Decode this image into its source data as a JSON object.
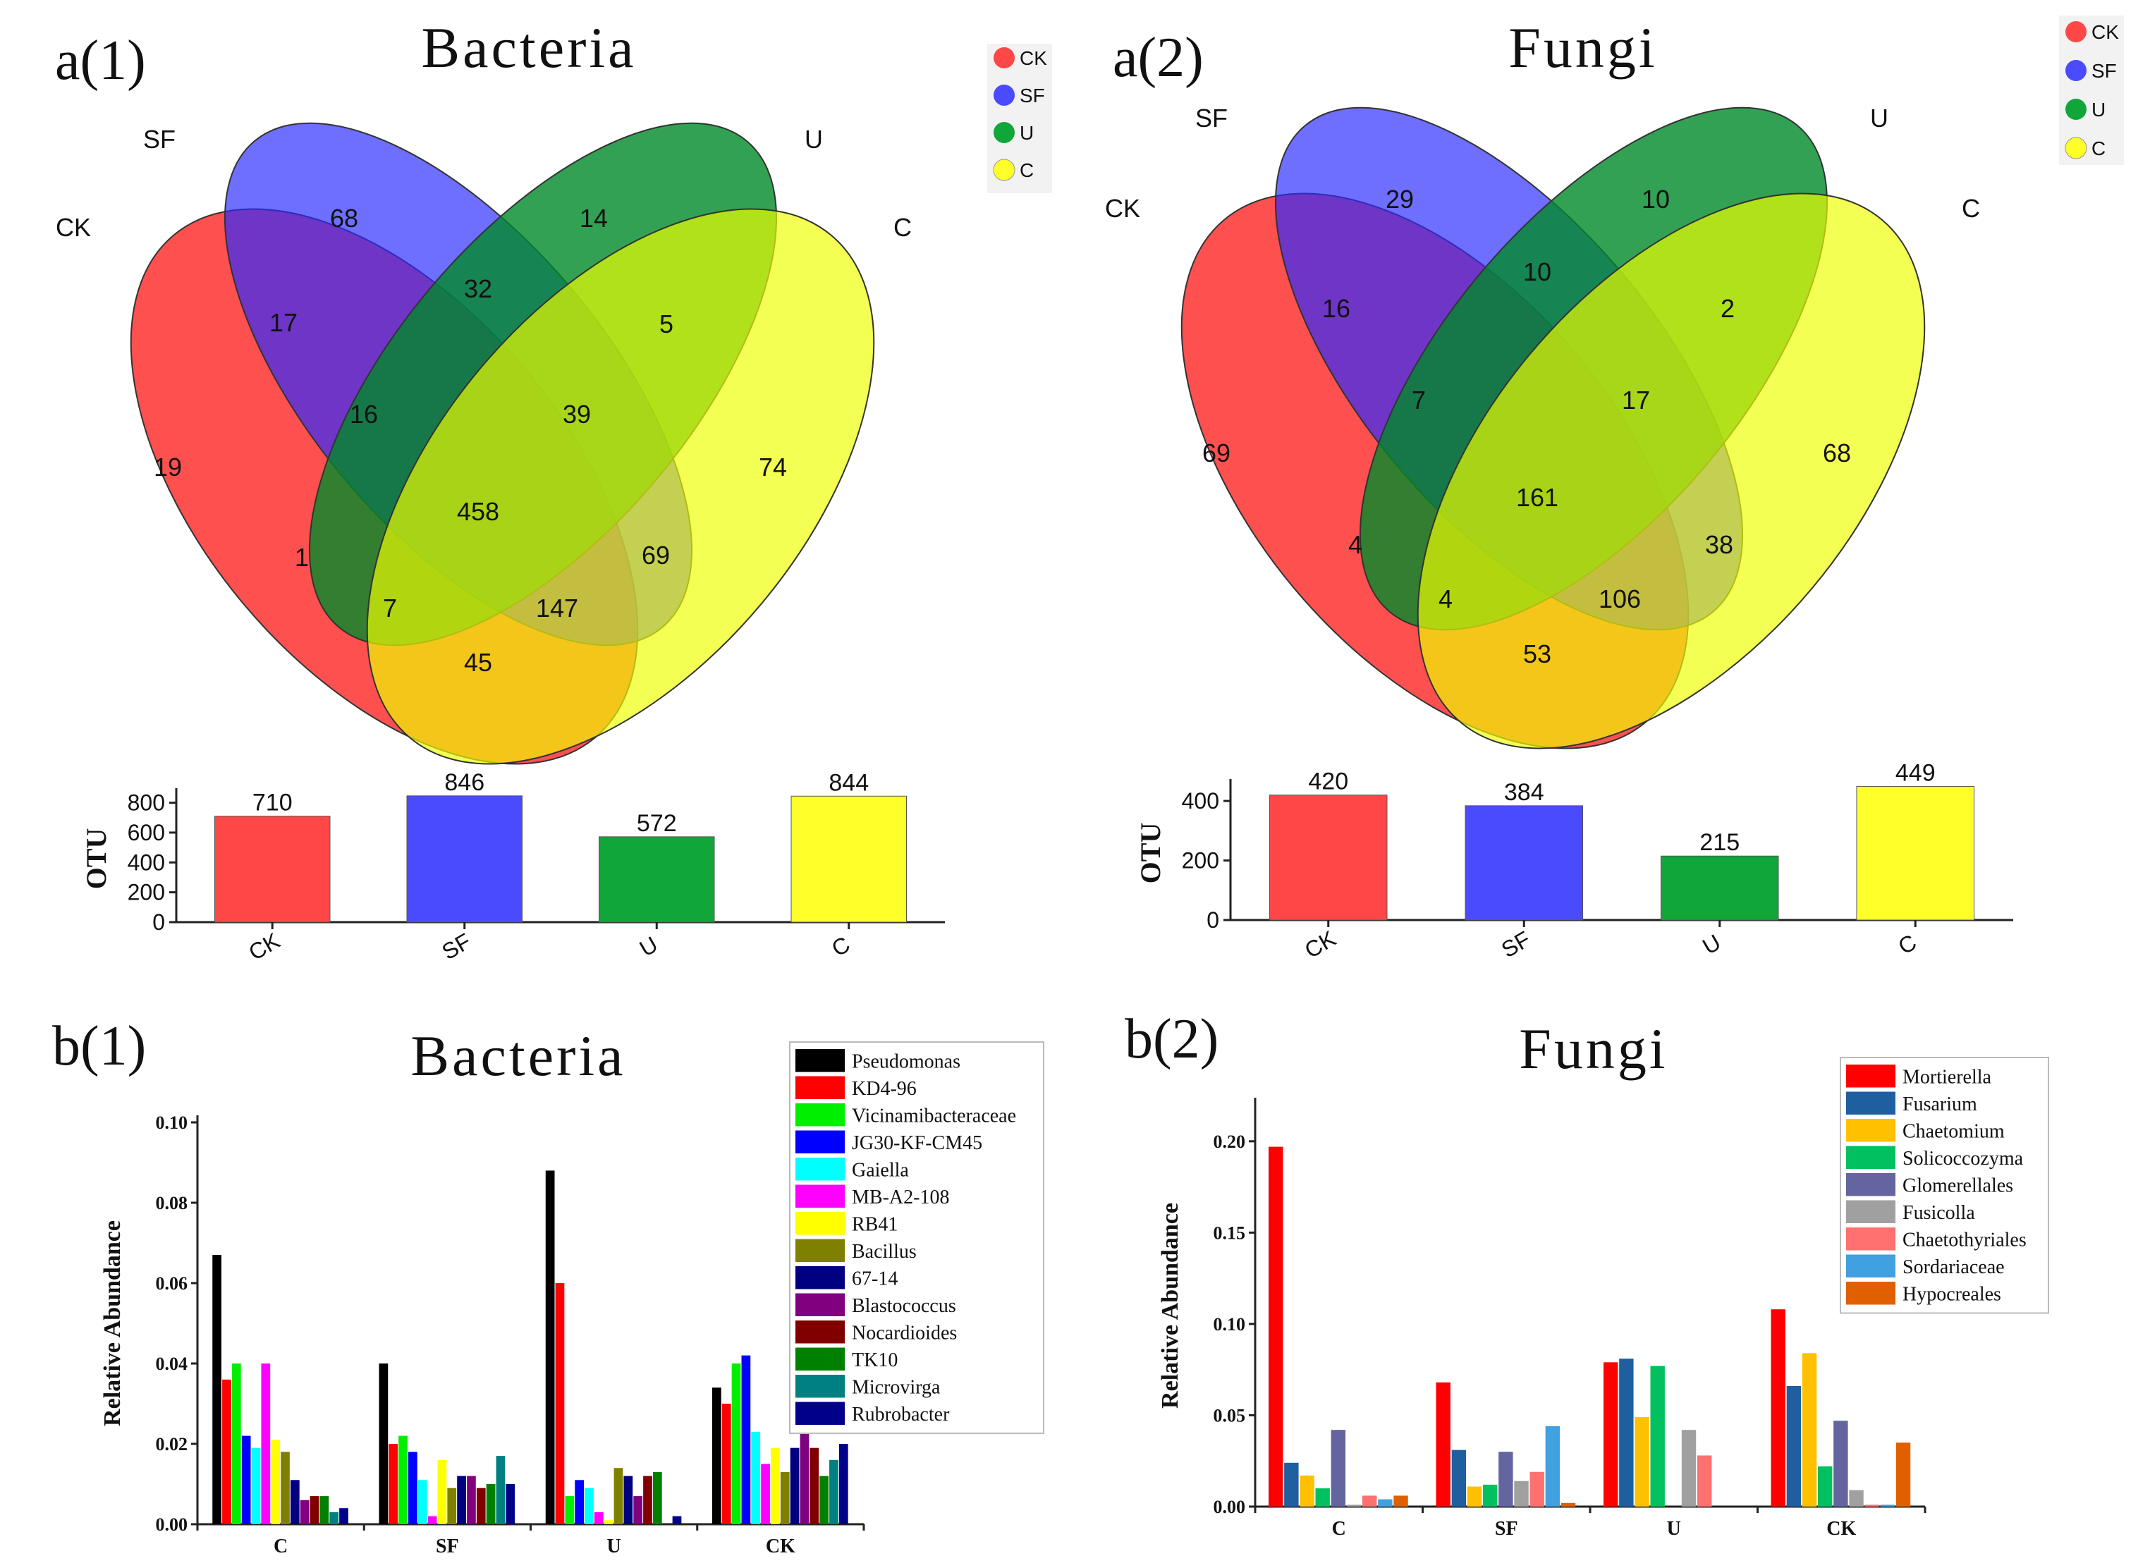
{
  "panels": {
    "a1": {
      "label": "a(1)",
      "title": "Bacteria",
      "venn": {
        "sets": [
          "CK",
          "SF",
          "U",
          "C"
        ],
        "colors": [
          "#f03a3a",
          "#3b3bf5",
          "#0b9a32",
          "#f0f000"
        ],
        "regions": [
          {
            "sets": "CK",
            "value": "19"
          },
          {
            "sets": "SF",
            "value": "68"
          },
          {
            "sets": "U",
            "value": "14"
          },
          {
            "sets": "C",
            "value": "74"
          },
          {
            "sets": "CK,SF",
            "value": "17"
          },
          {
            "sets": "SF,U",
            "value": "32"
          },
          {
            "sets": "U,C",
            "value": "5"
          },
          {
            "sets": "CK,SF,U",
            "value": "16"
          },
          {
            "sets": "SF,U,C",
            "value": "39"
          },
          {
            "sets": "CK,SF,U,C",
            "value": "458"
          },
          {
            "sets": "CK,U",
            "value": "1"
          },
          {
            "sets": "SF,C",
            "value": "69"
          },
          {
            "sets": "CK,U,C",
            "value": "7"
          },
          {
            "sets": "CK,SF,C",
            "value": "147"
          },
          {
            "sets": "CK,C",
            "value": "45"
          }
        ]
      },
      "legend": [
        "CK",
        "SF",
        "U",
        "C"
      ]
    },
    "a2": {
      "label": "a(2)",
      "title": "Fungi",
      "venn": {
        "sets": [
          "CK",
          "SF",
          "U",
          "C"
        ],
        "colors": [
          "#f03a3a",
          "#3b3bf5",
          "#0b9a32",
          "#f0f000"
        ],
        "regions": [
          {
            "sets": "CK",
            "value": "69"
          },
          {
            "sets": "SF",
            "value": "29"
          },
          {
            "sets": "U",
            "value": "10"
          },
          {
            "sets": "C",
            "value": "68"
          },
          {
            "sets": "CK,SF",
            "value": "16"
          },
          {
            "sets": "SF,U",
            "value": "10"
          },
          {
            "sets": "U,C",
            "value": "2"
          },
          {
            "sets": "CK,SF,U",
            "value": "7"
          },
          {
            "sets": "SF,U,C",
            "value": "17"
          },
          {
            "sets": "CK,SF,U,C",
            "value": "161"
          },
          {
            "sets": "CK,U",
            "value": "4"
          },
          {
            "sets": "SF,C",
            "value": "38"
          },
          {
            "sets": "CK,U,C",
            "value": "4"
          },
          {
            "sets": "CK,SF,C",
            "value": "106"
          },
          {
            "sets": "CK,C",
            "value": "53"
          }
        ]
      },
      "legend": [
        "CK",
        "SF",
        "U",
        "C"
      ]
    },
    "b1": {
      "label": "b(1)",
      "title": "Bacteria",
      "legend": [
        "Pseudomonas",
        "KD4-96",
        "Vicinamibacteraceae",
        "JG30-KF-CM45",
        "Gaiella",
        "MB-A2-108",
        "RB41",
        "Bacillus",
        "67-14",
        "Blastococcus",
        "Nocardioides",
        "TK10",
        "Microvirga",
        "Rubrobacter"
      ]
    },
    "b2": {
      "label": "b(2)",
      "title": "Fungi",
      "legend": [
        "Mortierella",
        "Fusarium",
        "Chaetomium",
        "Solicoccozyma",
        "Glomerellales",
        "Fusicolla",
        "Chaetothyriales",
        "Sordariaceae",
        "Hypocreales"
      ]
    }
  },
  "chart_data": [
    {
      "id": "otu_bacteria",
      "type": "bar",
      "categories": [
        "CK",
        "SF",
        "U",
        "C"
      ],
      "values": [
        710,
        846,
        572,
        844
      ],
      "data_labels": [
        "710",
        "846",
        "572",
        "844"
      ],
      "colors": [
        "#ff4747",
        "#4a4aff",
        "#11a63a",
        "#ffff2a"
      ],
      "ylabel": "OTU",
      "ylim": [
        0,
        850
      ],
      "yticks": [
        0,
        200,
        400,
        600,
        800
      ],
      "ytick_labels": [
        "0",
        "200",
        "400",
        "600",
        "800"
      ],
      "grid": false
    },
    {
      "id": "otu_fungi",
      "type": "bar",
      "categories": [
        "CK",
        "SF",
        "U",
        "C"
      ],
      "values": [
        420,
        384,
        215,
        449
      ],
      "data_labels": [
        "420",
        "384",
        "215",
        "449"
      ],
      "colors": [
        "#ff4747",
        "#4a4aff",
        "#11a63a",
        "#ffff2a"
      ],
      "ylabel": "OTU",
      "ylim": [
        0,
        450
      ],
      "yticks": [
        0,
        200,
        400
      ],
      "ytick_labels": [
        "0",
        "200",
        "400"
      ],
      "grid": false
    },
    {
      "id": "abundance_bacteria",
      "type": "bar",
      "categories": [
        "C",
        "SF",
        "U",
        "CK"
      ],
      "ylabel": "Relative Abundance",
      "ylim": [
        0,
        0.1
      ],
      "yticks": [
        0,
        0.02,
        0.04,
        0.06,
        0.08,
        0.1
      ],
      "ytick_labels": [
        "0.00",
        "0.02",
        "0.04",
        "0.06",
        "0.08",
        "0.10"
      ],
      "legend_position": "top-right",
      "grid": false,
      "series": [
        {
          "name": "Pseudomonas",
          "color": "#000000",
          "values": [
            0.067,
            0.04,
            0.088,
            0.034
          ]
        },
        {
          "name": "KD4-96",
          "color": "#ff0000",
          "values": [
            0.036,
            0.02,
            0.06,
            0.03
          ]
        },
        {
          "name": "Vicinamibacteraceae",
          "color": "#00ee00",
          "values": [
            0.04,
            0.022,
            0.007,
            0.04
          ]
        },
        {
          "name": "JG30-KF-CM45",
          "color": "#0000ff",
          "values": [
            0.022,
            0.018,
            0.011,
            0.042
          ]
        },
        {
          "name": "Gaiella",
          "color": "#00ffff",
          "values": [
            0.019,
            0.011,
            0.009,
            0.023
          ]
        },
        {
          "name": "MB-A2-108",
          "color": "#ff00ff",
          "values": [
            0.04,
            0.002,
            0.003,
            0.015
          ]
        },
        {
          "name": "RB41",
          "color": "#ffff00",
          "values": [
            0.021,
            0.016,
            0.001,
            0.019
          ]
        },
        {
          "name": "Bacillus",
          "color": "#808000",
          "values": [
            0.018,
            0.009,
            0.014,
            0.013
          ]
        },
        {
          "name": "67-14",
          "color": "#000080",
          "values": [
            0.011,
            0.012,
            0.012,
            0.019
          ]
        },
        {
          "name": "Blastococcus",
          "color": "#800080",
          "values": [
            0.006,
            0.012,
            0.007,
            0.023
          ]
        },
        {
          "name": "Nocardioides",
          "color": "#800000",
          "values": [
            0.007,
            0.009,
            0.012,
            0.019
          ]
        },
        {
          "name": "TK10",
          "color": "#008000",
          "values": [
            0.007,
            0.01,
            0.013,
            0.012
          ]
        },
        {
          "name": "Microvirga",
          "color": "#008080",
          "values": [
            0.003,
            0.017,
            0.0,
            0.016
          ]
        },
        {
          "name": "Rubrobacter",
          "color": "#00008b",
          "values": [
            0.004,
            0.01,
            0.002,
            0.02
          ]
        }
      ]
    },
    {
      "id": "abundance_fungi",
      "type": "bar",
      "categories": [
        "C",
        "SF",
        "U",
        "CK"
      ],
      "ylabel": "Relative Abundance",
      "ylim": [
        0,
        0.22
      ],
      "yticks": [
        0,
        0.05,
        0.1,
        0.15,
        0.2
      ],
      "ytick_labels": [
        "0.00",
        "0.05",
        "0.10",
        "0.15",
        "0.20"
      ],
      "legend_position": "top-right",
      "grid": false,
      "series": [
        {
          "name": "Mortierella",
          "color": "#ff0000",
          "values": [
            0.197,
            0.068,
            0.079,
            0.108
          ]
        },
        {
          "name": "Fusarium",
          "color": "#1f5fa0",
          "values": [
            0.024,
            0.031,
            0.081,
            0.066
          ]
        },
        {
          "name": "Chaetomium",
          "color": "#ffc000",
          "values": [
            0.017,
            0.011,
            0.049,
            0.084
          ]
        },
        {
          "name": "Solicoccozyma",
          "color": "#00c060",
          "values": [
            0.01,
            0.012,
            0.077,
            0.022
          ]
        },
        {
          "name": "Glomerellales",
          "color": "#6464a0",
          "values": [
            0.042,
            0.03,
            0.0,
            0.047
          ]
        },
        {
          "name": "Fusicolla",
          "color": "#a0a0a0",
          "values": [
            0.001,
            0.014,
            0.042,
            0.009
          ]
        },
        {
          "name": "Chaetothyriales",
          "color": "#ff7070",
          "values": [
            0.006,
            0.019,
            0.028,
            0.001
          ]
        },
        {
          "name": "Sordariaceae",
          "color": "#40a0e0",
          "values": [
            0.004,
            0.044,
            0.0,
            0.001
          ]
        },
        {
          "name": "Hypocreales",
          "color": "#e06000",
          "values": [
            0.006,
            0.002,
            0.0,
            0.035
          ]
        }
      ]
    }
  ]
}
